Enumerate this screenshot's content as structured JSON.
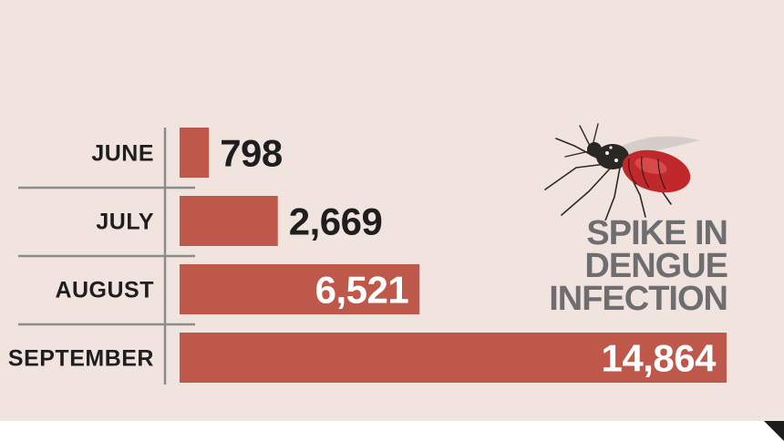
{
  "headline": {
    "line1": "SPIKE IN",
    "line2": "DENGUE",
    "line3": "INFECTION"
  },
  "chart_data": {
    "type": "bar",
    "orientation": "horizontal",
    "categories": [
      "JUNE",
      "JULY",
      "AUGUST",
      "SEPTEMBER"
    ],
    "values": [
      798,
      2669,
      6521,
      14864
    ],
    "value_labels": [
      "798",
      "2,669",
      "6,521",
      "14,864"
    ],
    "title": "SPIKE IN DENGUE INFECTION",
    "xlabel": "",
    "ylabel": "",
    "xlim": [
      0,
      14864
    ],
    "grid": false,
    "legend": "none"
  },
  "colors": {
    "background": "#f1e4df",
    "bar": "#bd584b",
    "label_dark": "#1e1e1e",
    "label_light": "#ffffff",
    "rule": "#8b8b8b",
    "headline": "#6e6e70"
  },
  "icons": {
    "illustration": "mosquito-icon"
  }
}
